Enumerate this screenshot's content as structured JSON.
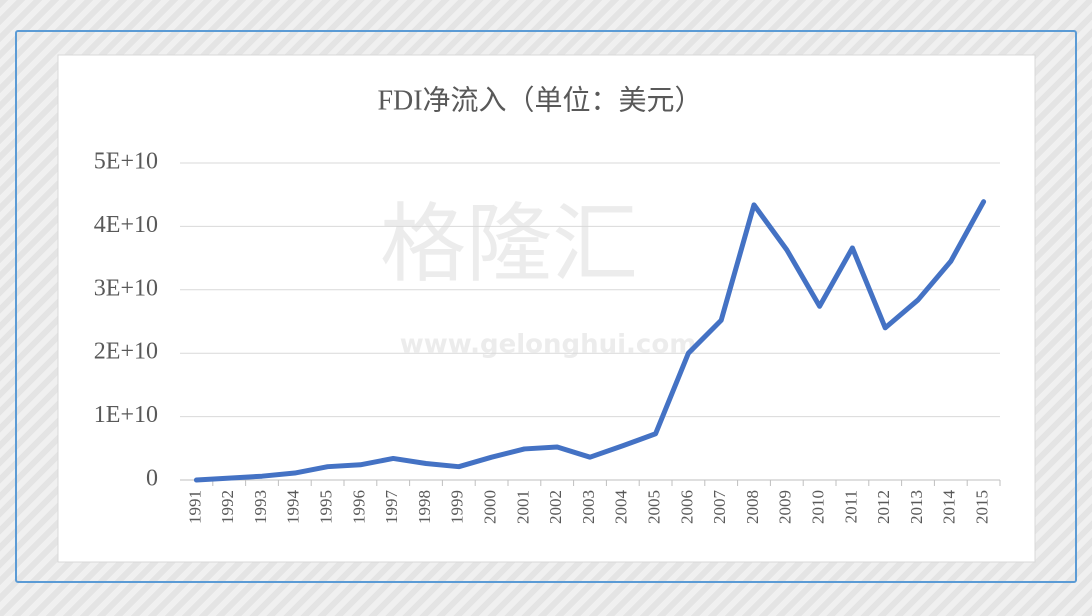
{
  "chart_data": {
    "type": "line",
    "title": "FDI净流入（单位：美元）",
    "categories": [
      "1991",
      "1992",
      "1993",
      "1994",
      "1995",
      "1996",
      "1997",
      "1998",
      "1999",
      "2000",
      "2001",
      "2002",
      "2003",
      "2004",
      "2005",
      "2006",
      "2007",
      "2008",
      "2009",
      "2010",
      "2011",
      "2012",
      "2013",
      "2014",
      "2015"
    ],
    "series": [
      {
        "name": "FDI净流入",
        "color": "#4472c4",
        "values": [
          0,
          300000000,
          600000000,
          1100000000,
          2100000000,
          2400000000,
          3400000000,
          2600000000,
          2100000000,
          3600000000,
          4900000000,
          5200000000,
          3600000000,
          5400000000,
          7300000000,
          20000000000,
          25200000000,
          43400000000,
          36300000000,
          27400000000,
          36600000000,
          24000000000,
          28400000000,
          34500000000,
          43900000000
        ]
      }
    ],
    "ylim": [
      0,
      50000000000
    ],
    "yticks": [
      0,
      {
        "value": 10000000000,
        "label": "1E+10"
      },
      {
        "value": 20000000000,
        "label": "2E+10"
      },
      {
        "value": 30000000000,
        "label": "3E+10"
      },
      {
        "value": 40000000000,
        "label": "4E+10"
      },
      {
        "value": 50000000000,
        "label": "5E+10"
      }
    ],
    "grid": true
  },
  "watermark": {
    "logo": "格隆汇",
    "url": "www.gelonghui.com"
  }
}
